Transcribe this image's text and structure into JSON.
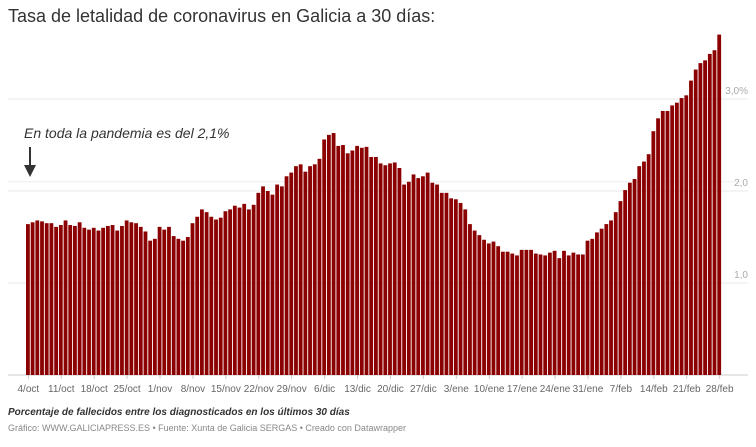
{
  "chart_data": {
    "type": "bar",
    "title": "Tasa de letalidad de coronavirus en Galicia a 30 días:",
    "subtitle_note": "Porcentaje de fallecidos entre los diagnosticados en los últimos 30 días",
    "credit": "Gráfico: WWW.GALICIAPRESS.ES • Fuente: Xunta de Galicia SERGAS • Creado con Datawrapper",
    "annotation": "En toda la pandemia es del 2,1%",
    "reference_value": 2.1,
    "ylim": [
      0,
      3.75
    ],
    "grid": true,
    "yticks": [
      {
        "value": 1,
        "label": "1,0"
      },
      {
        "value": 2,
        "label": "2,0"
      },
      {
        "value": 3,
        "label": "3,0%"
      }
    ],
    "xtick_labels": [
      "4/oct",
      "11/oct",
      "18/oct",
      "25/oct",
      "1/nov",
      "8/nov",
      "15/nov",
      "22/nov",
      "29/nov",
      "6/dic",
      "13/dic",
      "20/dic",
      "27/dic",
      "3/ene",
      "10/ene",
      "17/ene",
      "24/ene",
      "31/ene",
      "7/feb",
      "14/feb",
      "21/feb",
      "28/feb"
    ],
    "bar_color": "#8b0000",
    "values": [
      1.64,
      1.66,
      1.68,
      1.67,
      1.65,
      1.65,
      1.61,
      1.63,
      1.68,
      1.63,
      1.62,
      1.66,
      1.6,
      1.58,
      1.6,
      1.57,
      1.6,
      1.62,
      1.63,
      1.57,
      1.62,
      1.68,
      1.66,
      1.65,
      1.61,
      1.56,
      1.46,
      1.48,
      1.61,
      1.58,
      1.61,
      1.51,
      1.48,
      1.46,
      1.5,
      1.65,
      1.72,
      1.8,
      1.77,
      1.72,
      1.69,
      1.71,
      1.78,
      1.8,
      1.84,
      1.82,
      1.86,
      1.8,
      1.85,
      1.98,
      2.05,
      2.0,
      1.96,
      2.07,
      2.05,
      2.16,
      2.2,
      2.27,
      2.29,
      2.21,
      2.27,
      2.29,
      2.35,
      2.56,
      2.61,
      2.63,
      2.49,
      2.5,
      2.41,
      2.44,
      2.49,
      2.47,
      2.48,
      2.37,
      2.37,
      2.3,
      2.28,
      2.3,
      2.31,
      2.25,
      2.07,
      2.1,
      2.18,
      2.14,
      2.16,
      2.2,
      2.09,
      2.07,
      1.98,
      1.98,
      1.92,
      1.91,
      1.87,
      1.8,
      1.64,
      1.57,
      1.52,
      1.47,
      1.43,
      1.45,
      1.4,
      1.34,
      1.34,
      1.32,
      1.3,
      1.36,
      1.36,
      1.36,
      1.32,
      1.31,
      1.3,
      1.33,
      1.35,
      1.27,
      1.35,
      1.3,
      1.33,
      1.31,
      1.31,
      1.46,
      1.48,
      1.55,
      1.59,
      1.64,
      1.68,
      1.77,
      1.89,
      2.01,
      2.09,
      2.13,
      2.27,
      2.32,
      2.4,
      2.65,
      2.79,
      2.87,
      2.87,
      2.93,
      2.96,
      3.01,
      3.04,
      3.2,
      3.32,
      3.39,
      3.42,
      3.49,
      3.53,
      3.7
    ]
  }
}
